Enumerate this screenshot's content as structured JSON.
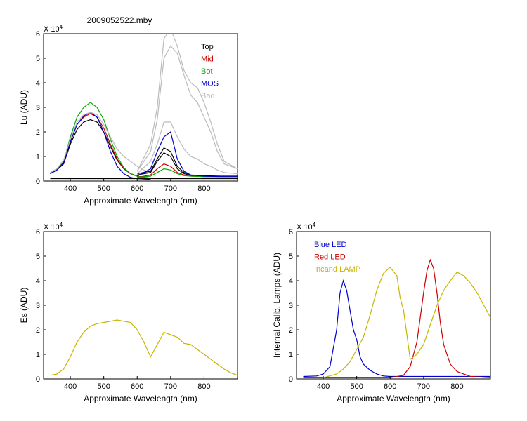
{
  "chart_data": [
    {
      "type": "line",
      "title": "2009052522.mby",
      "xlabel": "Approximate Wavelength (nm)",
      "ylabel": "Lu (ADU)",
      "exponent_label": "X 10",
      "exponent_power": "4",
      "xlim": [
        320,
        900
      ],
      "ylim": [
        0,
        6
      ],
      "xticks": [
        "400",
        "500",
        "600",
        "700",
        "800"
      ],
      "yticks": [
        "0",
        "1",
        "2",
        "3",
        "4",
        "5",
        "6"
      ],
      "legend_position": "top-right",
      "series": [
        {
          "name": "Top",
          "color": "#000000",
          "x": [
            340,
            360,
            380,
            400,
            420,
            440,
            460,
            480,
            500,
            520,
            540,
            560,
            580,
            600,
            620,
            640
          ],
          "y": [
            0.3,
            0.45,
            0.7,
            1.5,
            2.1,
            2.4,
            2.5,
            2.4,
            2.0,
            1.4,
            0.85,
            0.5,
            0.3,
            0.2,
            0.15,
            0.12
          ]
        },
        {
          "name": "Mid",
          "color": "#cc0000",
          "x": [
            340,
            360,
            380,
            400,
            420,
            440,
            460,
            480,
            500,
            520,
            540,
            560,
            580,
            600,
            620,
            640
          ],
          "y": [
            0.3,
            0.45,
            0.75,
            1.6,
            2.3,
            2.6,
            2.75,
            2.6,
            2.15,
            1.5,
            0.9,
            0.5,
            0.3,
            0.2,
            0.15,
            0.12
          ]
        },
        {
          "name": "Bot",
          "color": "#00aa00",
          "x": [
            340,
            360,
            380,
            400,
            420,
            440,
            460,
            480,
            500,
            520,
            540,
            560,
            580,
            600,
            620,
            640
          ],
          "y": [
            0.3,
            0.5,
            0.8,
            1.8,
            2.6,
            3.0,
            3.2,
            3.0,
            2.5,
            1.7,
            1.0,
            0.55,
            0.3,
            0.2,
            0.15,
            0.12
          ]
        },
        {
          "name": "MOS",
          "color": "#0000cc",
          "x": [
            340,
            360,
            380,
            400,
            420,
            440,
            460,
            480,
            500,
            520,
            540,
            560,
            580,
            600,
            620,
            640
          ],
          "y": [
            0.3,
            0.45,
            0.75,
            1.6,
            2.3,
            2.65,
            2.8,
            2.6,
            2.0,
            1.2,
            0.6,
            0.3,
            0.15,
            0.1,
            0.08,
            0.07
          ]
        },
        {
          "name": "Bad",
          "color": "#bbbbbb",
          "x": [
            340,
            360,
            380,
            400,
            420,
            440,
            460,
            480,
            500,
            520,
            540,
            560,
            580,
            600,
            620,
            640
          ],
          "y": [
            0.35,
            0.5,
            0.85,
            1.7,
            2.4,
            2.7,
            2.8,
            2.7,
            2.3,
            1.8,
            1.3,
            1.0,
            0.8,
            0.6,
            0.45,
            0.35
          ]
        },
        {
          "name": "",
          "color": "#000000",
          "x": [
            600,
            640,
            660,
            680,
            700,
            720,
            740,
            760,
            800,
            850,
            900
          ],
          "y": [
            0.3,
            0.4,
            0.9,
            1.35,
            1.2,
            0.6,
            0.35,
            0.25,
            0.22,
            0.2,
            0.2
          ]
        },
        {
          "name": "",
          "color": "#000000",
          "x": [
            600,
            640,
            660,
            680,
            700,
            720,
            740,
            760,
            800,
            850,
            900
          ],
          "y": [
            0.25,
            0.35,
            0.8,
            1.15,
            1.0,
            0.5,
            0.3,
            0.22,
            0.2,
            0.18,
            0.18
          ]
        },
        {
          "name": "",
          "color": "#cc0000",
          "x": [
            600,
            640,
            660,
            680,
            700,
            720,
            740,
            760,
            800,
            850,
            900
          ],
          "y": [
            0.15,
            0.25,
            0.5,
            0.7,
            0.6,
            0.35,
            0.25,
            0.2,
            0.18,
            0.18,
            0.18
          ]
        },
        {
          "name": "",
          "color": "#00aa00",
          "x": [
            600,
            640,
            660,
            680,
            700,
            720,
            740,
            760,
            800,
            850,
            900
          ],
          "y": [
            0.15,
            0.2,
            0.35,
            0.5,
            0.45,
            0.3,
            0.22,
            0.2,
            0.18,
            0.18,
            0.18
          ]
        },
        {
          "name": "",
          "color": "#0000cc",
          "x": [
            600,
            640,
            660,
            680,
            700,
            720,
            740,
            760,
            800,
            850,
            900
          ],
          "y": [
            0.2,
            0.5,
            1.2,
            1.8,
            2.0,
            0.9,
            0.4,
            0.25,
            0.2,
            0.18,
            0.18
          ]
        },
        {
          "name": "",
          "color": "#bbbbbb",
          "x": [
            600,
            640,
            660,
            680,
            700,
            720,
            740,
            760,
            780,
            800,
            820,
            840,
            860,
            900
          ],
          "y": [
            0.4,
            1.5,
            3.0,
            5.8,
            6.2,
            5.5,
            4.5,
            4.0,
            3.8,
            3.2,
            2.4,
            1.5,
            0.8,
            0.5
          ]
        },
        {
          "name": "",
          "color": "#bbbbbb",
          "x": [
            600,
            640,
            660,
            680,
            700,
            720,
            740,
            760,
            780,
            800,
            820,
            840,
            860,
            900
          ],
          "y": [
            0.4,
            1.2,
            2.5,
            5.0,
            5.5,
            5.2,
            4.3,
            3.5,
            3.2,
            2.6,
            2.0,
            1.2,
            0.7,
            0.5
          ]
        },
        {
          "name": "",
          "color": "#bbbbbb",
          "x": [
            600,
            640,
            660,
            680,
            700,
            720,
            740,
            760,
            780,
            800,
            820,
            840,
            860,
            900
          ],
          "y": [
            0.3,
            0.8,
            1.5,
            2.4,
            2.4,
            1.8,
            1.3,
            1.0,
            0.9,
            0.7,
            0.6,
            0.45,
            0.35,
            0.3
          ]
        },
        {
          "name": "",
          "color": "#000000",
          "x": [
            340,
            900
          ],
          "y": [
            0.1,
            0.1
          ]
        }
      ]
    },
    {
      "type": "line",
      "xlabel": "Approximate Wavelength (nm)",
      "ylabel": "Es (ADU)",
      "exponent_label": "X 10",
      "exponent_power": "4",
      "xlim": [
        320,
        900
      ],
      "ylim": [
        0,
        6
      ],
      "xticks": [
        "400",
        "500",
        "600",
        "700",
        "800"
      ],
      "yticks": [
        "0",
        "1",
        "2",
        "3",
        "4",
        "5",
        "6"
      ],
      "series": [
        {
          "name": "",
          "color": "#c8b400",
          "x": [
            340,
            360,
            380,
            400,
            420,
            440,
            460,
            480,
            500,
            520,
            540,
            560,
            580,
            600,
            620,
            640,
            660,
            680,
            700,
            720,
            740,
            760,
            780,
            800,
            820,
            840,
            860,
            880,
            900
          ],
          "y": [
            0.15,
            0.2,
            0.4,
            0.9,
            1.5,
            1.9,
            2.15,
            2.25,
            2.3,
            2.35,
            2.4,
            2.35,
            2.3,
            2.0,
            1.5,
            0.9,
            1.4,
            1.9,
            1.8,
            1.7,
            1.45,
            1.4,
            1.2,
            1.0,
            0.8,
            0.6,
            0.4,
            0.25,
            0.15
          ]
        }
      ]
    },
    {
      "type": "line",
      "xlabel": "Approximate Wavelength (nm)",
      "ylabel": "Internal Calib. Lamps (ADU)",
      "exponent_label": "X 10",
      "exponent_power": "4",
      "xlim": [
        320,
        900
      ],
      "ylim": [
        0,
        6
      ],
      "xticks": [
        "400",
        "500",
        "600",
        "700",
        "800"
      ],
      "yticks": [
        "0",
        "1",
        "2",
        "3",
        "4",
        "5",
        "6"
      ],
      "legend_position": "top-left",
      "series": [
        {
          "name": "Blue LED",
          "color": "#0000cc",
          "x": [
            340,
            380,
            400,
            420,
            440,
            450,
            460,
            470,
            480,
            490,
            500,
            510,
            520,
            540,
            560,
            580,
            600,
            640,
            700,
            900
          ],
          "y": [
            0.1,
            0.12,
            0.2,
            0.5,
            2.0,
            3.5,
            4.0,
            3.6,
            2.8,
            2.0,
            1.6,
            0.9,
            0.6,
            0.35,
            0.2,
            0.12,
            0.1,
            0.1,
            0.1,
            0.1
          ]
        },
        {
          "name": "Red LED",
          "color": "#cc0000",
          "x": [
            340,
            600,
            640,
            660,
            680,
            690,
            700,
            710,
            720,
            730,
            740,
            750,
            760,
            780,
            800,
            840,
            900
          ],
          "y": [
            0.05,
            0.05,
            0.15,
            0.5,
            1.5,
            2.5,
            3.5,
            4.4,
            4.85,
            4.5,
            3.5,
            2.3,
            1.4,
            0.6,
            0.3,
            0.1,
            0.05
          ]
        },
        {
          "name": "Incand LAMP",
          "color": "#c8b400",
          "x": [
            400,
            440,
            460,
            480,
            500,
            520,
            540,
            560,
            580,
            600,
            620,
            630,
            640,
            660,
            680,
            700,
            720,
            740,
            760,
            780,
            800,
            820,
            840,
            860,
            880,
            900
          ],
          "y": [
            0.05,
            0.2,
            0.4,
            0.7,
            1.2,
            1.7,
            2.6,
            3.6,
            4.3,
            4.55,
            4.2,
            3.3,
            2.8,
            0.8,
            1.0,
            1.4,
            2.2,
            3.0,
            3.6,
            4.0,
            4.35,
            4.2,
            3.9,
            3.5,
            3.0,
            2.5
          ]
        }
      ]
    }
  ]
}
